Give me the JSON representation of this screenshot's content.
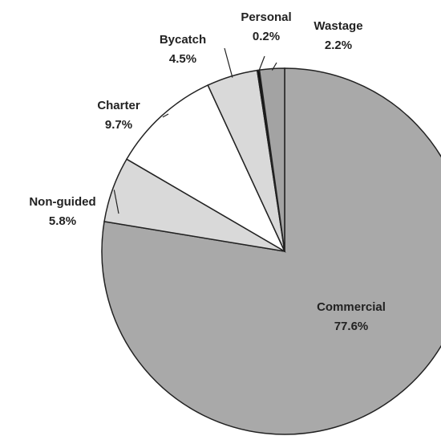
{
  "chart_data": {
    "type": "pie",
    "categories": [
      "Commercial",
      "Non-guided",
      "Charter",
      "Bycatch",
      "Personal",
      "Wastage"
    ],
    "values": [
      77.6,
      5.8,
      9.7,
      4.5,
      0.2,
      2.2
    ],
    "value_labels": [
      "77.6%",
      "5.8%",
      "9.7%",
      "4.5%",
      "0.2%",
      "2.2%"
    ],
    "colors": [
      "#a9a9a9",
      "#d9d9d9",
      "#ffffff",
      "#d9d9d9",
      "#111111",
      "#a3a3a3"
    ]
  }
}
